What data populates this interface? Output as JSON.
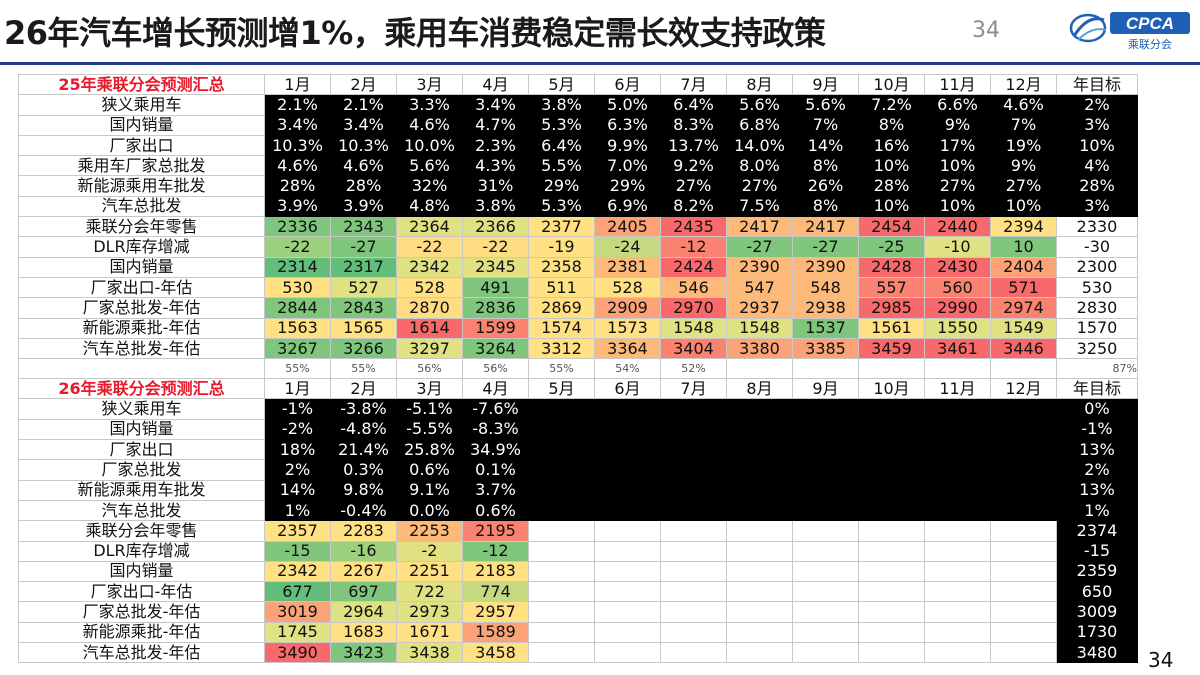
{
  "title": "26年汽车增长预测增1%，乘用车消费稳定需长效支持政策",
  "page_number_top": "34",
  "page_number_bottom": "34",
  "logo": {
    "text": "CPCA",
    "subtext": "乘联分会",
    "icon": "cpca-logo-icon"
  },
  "months": [
    "1月",
    "2月",
    "3月",
    "4月",
    "5月",
    "6月",
    "7月",
    "8月",
    "9月",
    "10月",
    "11月",
    "12月"
  ],
  "year_target_label": "年目标",
  "table_2025": {
    "header": "25年乘联分会预测汇总",
    "rows": [
      {
        "label": "狭义乘用车",
        "values": [
          "2.1%",
          "2.1%",
          "3.3%",
          "3.4%",
          "3.8%",
          "5.0%",
          "6.4%",
          "5.6%",
          "5.6%",
          "7.2%",
          "6.6%",
          "4.6%"
        ],
        "target": "2%"
      },
      {
        "label": "国内销量",
        "values": [
          "3.4%",
          "3.4%",
          "4.6%",
          "4.7%",
          "5.3%",
          "6.3%",
          "8.3%",
          "6.8%",
          "7%",
          "8%",
          "9%",
          "7%"
        ],
        "target": "3%"
      },
      {
        "label": "厂家出口",
        "values": [
          "10.3%",
          "10.3%",
          "10.0%",
          "2.3%",
          "6.4%",
          "9.9%",
          "13.7%",
          "14.0%",
          "14%",
          "16%",
          "17%",
          "19%"
        ],
        "target": "10%"
      },
      {
        "label": "乘用车厂家总批发",
        "values": [
          "4.6%",
          "4.6%",
          "5.6%",
          "4.3%",
          "5.5%",
          "7.0%",
          "9.2%",
          "8.0%",
          "8%",
          "10%",
          "10%",
          "9%"
        ],
        "target": "4%"
      },
      {
        "label": "新能源乘用车批发",
        "values": [
          "28%",
          "28%",
          "32%",
          "31%",
          "29%",
          "29%",
          "27%",
          "27%",
          "26%",
          "28%",
          "27%",
          "27%"
        ],
        "target": "28%"
      },
      {
        "label": "汽车总批发",
        "values": [
          "3.9%",
          "3.9%",
          "4.8%",
          "3.8%",
          "5.3%",
          "6.9%",
          "8.2%",
          "7.5%",
          "8%",
          "10%",
          "10%",
          "10%"
        ],
        "target": "3%"
      },
      {
        "label": "乘联分会年零售",
        "values": [
          "2336",
          "2343",
          "2364",
          "2366",
          "2377",
          "2405",
          "2435",
          "2417",
          "2417",
          "2454",
          "2440",
          "2394"
        ],
        "target": "2330"
      },
      {
        "label": "DLR库存增减",
        "values": [
          "-22",
          "-27",
          "-22",
          "-22",
          "-19",
          "-24",
          "-12",
          "-27",
          "-27",
          "-25",
          "-10",
          "10"
        ],
        "target": "-30"
      },
      {
        "label": "国内销量",
        "values": [
          "2314",
          "2317",
          "2342",
          "2345",
          "2358",
          "2381",
          "2424",
          "2390",
          "2390",
          "2428",
          "2430",
          "2404"
        ],
        "target": "2300"
      },
      {
        "label": "厂家出口-年估",
        "values": [
          "530",
          "527",
          "528",
          "491",
          "511",
          "528",
          "546",
          "547",
          "548",
          "557",
          "560",
          "571"
        ],
        "target": "530"
      },
      {
        "label": "厂家总批发-年估",
        "values": [
          "2844",
          "2843",
          "2870",
          "2836",
          "2869",
          "2909",
          "2970",
          "2937",
          "2938",
          "2985",
          "2990",
          "2974"
        ],
        "target": "2830"
      },
      {
        "label": "新能源乘批-年估",
        "values": [
          "1563",
          "1565",
          "1614",
          "1599",
          "1574",
          "1573",
          "1548",
          "1548",
          "1537",
          "1561",
          "1550",
          "1549"
        ],
        "target": "1570"
      },
      {
        "label": "汽车总批发-年估",
        "values": [
          "3267",
          "3266",
          "3297",
          "3264",
          "3312",
          "3364",
          "3404",
          "3380",
          "3385",
          "3459",
          "3461",
          "3446"
        ],
        "target": "3250"
      }
    ]
  },
  "percent_row": [
    "55%",
    "55%",
    "56%",
    "56%",
    "55%",
    "54%",
    "52%",
    "",
    "",
    "",
    "",
    ""
  ],
  "percent_row_target": "87%",
  "table_2026": {
    "header": "26年乘联分会预测汇总",
    "rows": [
      {
        "label": "狭义乘用车",
        "values": [
          "-1%",
          "-3.8%",
          "-5.1%",
          "-7.6%",
          "",
          "",
          "",
          "",
          "",
          "",
          "",
          ""
        ],
        "target": "0%"
      },
      {
        "label": "国内销量",
        "values": [
          "-2%",
          "-4.8%",
          "-5.5%",
          "-8.3%",
          "",
          "",
          "",
          "",
          "",
          "",
          "",
          ""
        ],
        "target": "-1%"
      },
      {
        "label": "厂家出口",
        "values": [
          "18%",
          "21.4%",
          "25.8%",
          "34.9%",
          "",
          "",
          "",
          "",
          "",
          "",
          "",
          ""
        ],
        "target": "13%"
      },
      {
        "label": "厂家总批发",
        "values": [
          "2%",
          "0.3%",
          "0.6%",
          "0.1%",
          "",
          "",
          "",
          "",
          "",
          "",
          "",
          ""
        ],
        "target": "2%"
      },
      {
        "label": "新能源乘用车批发",
        "values": [
          "14%",
          "9.8%",
          "9.1%",
          "3.7%",
          "",
          "",
          "",
          "",
          "",
          "",
          "",
          ""
        ],
        "target": "13%"
      },
      {
        "label": "汽车总批发",
        "values": [
          "1%",
          "-0.4%",
          "0.0%",
          "0.6%",
          "",
          "",
          "",
          "",
          "",
          "",
          "",
          ""
        ],
        "target": "1%"
      },
      {
        "label": "乘联分会年零售",
        "values": [
          "2357",
          "2283",
          "2253",
          "2195",
          "",
          "",
          "",
          "",
          "",
          "",
          "",
          ""
        ],
        "target": "2374"
      },
      {
        "label": "DLR库存增减",
        "values": [
          "-15",
          "-16",
          "-2",
          "-12",
          "",
          "",
          "",
          "",
          "",
          "",
          "",
          ""
        ],
        "target": "-15"
      },
      {
        "label": "国内销量",
        "values": [
          "2342",
          "2267",
          "2251",
          "2183",
          "",
          "",
          "",
          "",
          "",
          "",
          "",
          ""
        ],
        "target": "2359"
      },
      {
        "label": "厂家出口-年估",
        "values": [
          "677",
          "697",
          "722",
          "774",
          "",
          "",
          "",
          "",
          "",
          "",
          "",
          ""
        ],
        "target": "650"
      },
      {
        "label": "厂家总批发-年估",
        "values": [
          "3019",
          "2964",
          "2973",
          "2957",
          "",
          "",
          "",
          "",
          "",
          "",
          "",
          ""
        ],
        "target": "3009"
      },
      {
        "label": "新能源乘批-年估",
        "values": [
          "1745",
          "1683",
          "1671",
          "1589",
          "",
          "",
          "",
          "",
          "",
          "",
          "",
          ""
        ],
        "target": "1730"
      },
      {
        "label": "汽车总批发-年估",
        "values": [
          "3490",
          "3423",
          "3438",
          "3458",
          "",
          "",
          "",
          "",
          "",
          "",
          "",
          ""
        ],
        "target": "3480"
      }
    ]
  },
  "colors": {
    "header_red": "#e8192c",
    "rule_blue": "#1f3c8c",
    "heat_red": "#f8696b",
    "heat_yellow": "#ffe083",
    "heat_green": "#63be7b"
  }
}
